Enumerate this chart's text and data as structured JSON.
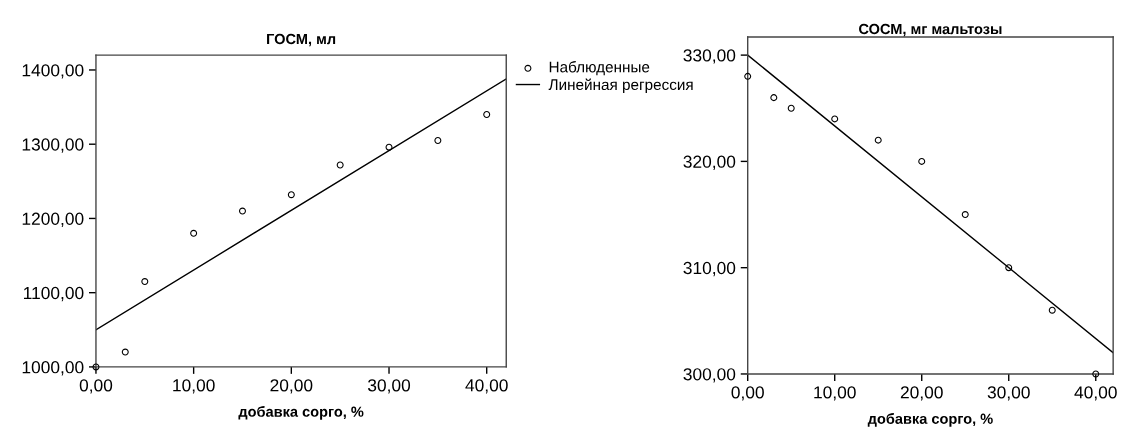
{
  "chart_data": [
    {
      "type": "scatter",
      "title": "ГОСМ, мл",
      "xlabel": "добавка сорго, %",
      "xlim": [
        0,
        42
      ],
      "ylim": [
        1000,
        1420
      ],
      "xticks": [
        {
          "value": 0,
          "label": "0,00"
        },
        {
          "value": 10,
          "label": "10,00"
        },
        {
          "value": 20,
          "label": "20,00"
        },
        {
          "value": 30,
          "label": "30,00"
        },
        {
          "value": 40,
          "label": "40,00"
        }
      ],
      "yticks": [
        {
          "value": 1000,
          "label": "1000,00"
        },
        {
          "value": 1100,
          "label": "1100,00"
        },
        {
          "value": 1200,
          "label": "1200,00"
        },
        {
          "value": 1300,
          "label": "1300,00"
        },
        {
          "value": 1400,
          "label": "1400,00"
        }
      ],
      "grid": false,
      "legend": "right",
      "series": [
        {
          "name": "Наблюденные",
          "marker": "circle",
          "color": "#000000",
          "x": [
            0,
            3,
            5,
            10,
            15,
            20,
            25,
            30,
            35,
            40
          ],
          "values": [
            1000,
            1020,
            1115,
            1180,
            1210,
            1232,
            1272,
            1296,
            1305,
            1340
          ]
        },
        {
          "name": "Линейная регрессия",
          "type": "line",
          "marker": "none",
          "color": "#000000",
          "x": [
            0,
            42
          ],
          "values": [
            1050,
            1388
          ]
        }
      ]
    },
    {
      "type": "scatter",
      "title": "СОСМ, мг мальтозы",
      "xlabel": "добавка сорго, %",
      "xlim": [
        0,
        42
      ],
      "ylim": [
        300,
        331.7
      ],
      "xticks": [
        {
          "value": 0,
          "label": "0,00"
        },
        {
          "value": 10,
          "label": "10,00"
        },
        {
          "value": 20,
          "label": "20,00"
        },
        {
          "value": 30,
          "label": "30,00"
        },
        {
          "value": 40,
          "label": "40,00"
        }
      ],
      "yticks": [
        {
          "value": 300,
          "label": "300,00"
        },
        {
          "value": 310,
          "label": "310,00"
        },
        {
          "value": 320,
          "label": "320,00"
        },
        {
          "value": 330,
          "label": "330,00"
        }
      ],
      "grid": false,
      "series": [
        {
          "marker": "circle",
          "color": "#000000",
          "x": [
            0,
            3,
            5,
            10,
            15,
            20,
            25,
            30,
            35,
            40
          ],
          "values": [
            328,
            326,
            325,
            324,
            322,
            320,
            315,
            310,
            306,
            300
          ]
        },
        {
          "type": "line",
          "marker": "none",
          "color": "#000000",
          "x": [
            0,
            42
          ],
          "values": [
            330,
            302
          ]
        }
      ]
    }
  ]
}
